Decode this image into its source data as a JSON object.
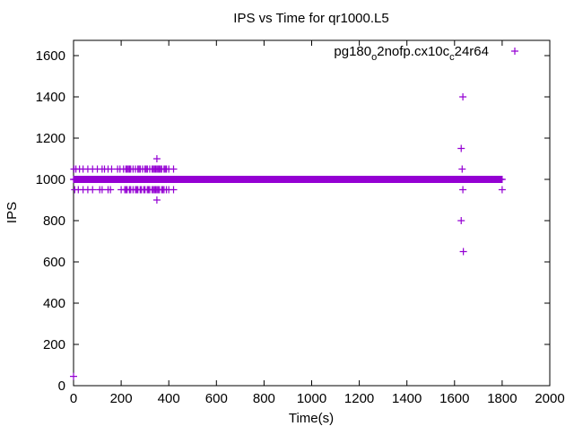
{
  "chart_data": {
    "type": "scatter",
    "title": "IPS vs Time for qr1000.L5",
    "xlabel": "Time(s)",
    "ylabel": "IPS",
    "xlim": [
      0,
      2000
    ],
    "ylim": [
      0,
      1680
    ],
    "xticks": [
      "0",
      "200",
      "400",
      "600",
      "800",
      "1000",
      "1200",
      "1400",
      "1600",
      "1800",
      "2000"
    ],
    "yticks": [
      "0",
      "200",
      "400",
      "600",
      "800",
      "1000",
      "1200",
      "1400",
      "1600"
    ],
    "grid": false,
    "legend_position": "top-right",
    "marker_color": "#9400d3",
    "series": [
      {
        "name": "pg180_o2nofp.cx10c_c24r64",
        "legend_parts": {
          "a": "pg180",
          "b": "o",
          "c": "2nofp.cx10c",
          "d": "c",
          "e": "24r64"
        },
        "dense_levels": [
          {
            "y": 1000,
            "x_from": 0,
            "x_to": 1800,
            "x_step": 3
          }
        ],
        "points": [
          {
            "y": 1050,
            "x": [
              2,
              10,
              25,
              40,
              60,
              80,
              100,
              120,
              130,
              145,
              160,
              185,
              195,
              210,
              220,
              225,
              230,
              235,
              240,
              250,
              260,
              270,
              275,
              280,
              290,
              300,
              305,
              310,
              320,
              330,
              335,
              340,
              345,
              350,
              355,
              360,
              365,
              370,
              380,
              385,
              390,
              400,
              420
            ]
          },
          {
            "y": 950,
            "x": [
              5,
              20,
              40,
              60,
              80,
              110,
              120,
              145,
              155,
              200,
              215,
              220,
              225,
              235,
              240,
              250,
              260,
              265,
              270,
              280,
              285,
              295,
              300,
              310,
              315,
              320,
              330,
              335,
              340,
              345,
              350,
              355,
              360,
              370,
              375,
              380,
              390,
              400,
              420
            ]
          },
          {
            "y": 1100,
            "x": [
              350
            ]
          },
          {
            "y": 900,
            "x": [
              350
            ]
          },
          {
            "y": 45,
            "x": [
              0
            ]
          },
          {
            "y": 1400,
            "x": [
              1635
            ]
          },
          {
            "y": 1150,
            "x": [
              1628
            ]
          },
          {
            "y": 1050,
            "x": [
              1632
            ]
          },
          {
            "y": 950,
            "x": [
              1635,
              1800
            ]
          },
          {
            "y": 800,
            "x": [
              1628
            ]
          },
          {
            "y": 650,
            "x": [
              1637
            ]
          }
        ]
      }
    ]
  }
}
